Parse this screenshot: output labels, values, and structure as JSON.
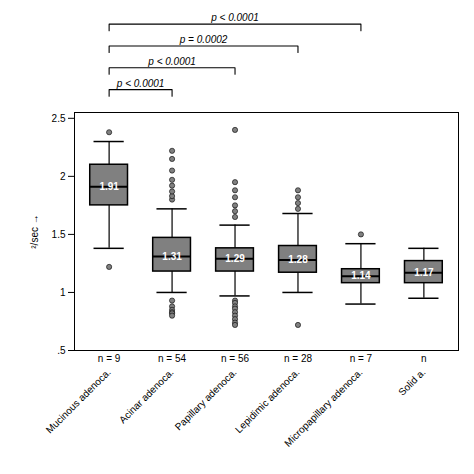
{
  "chart_data": {
    "type": "box",
    "categories": [
      "Mucinous adenoca.",
      "Acinar adenoca.",
      "Papillary adenoca.",
      "Lepidimic adenoca.",
      "Micropapillary adenoca.",
      "Solid a."
    ],
    "n_labels": [
      "n = 9",
      "n = 54",
      "n = 56",
      "n = 28",
      "n = 7",
      "n"
    ],
    "medians": [
      1.91,
      1.31,
      1.29,
      1.28,
      1.14,
      1.17
    ],
    "q1": [
      1.75,
      1.18,
      1.18,
      1.17,
      1.08,
      1.08
    ],
    "q3": [
      2.1,
      1.47,
      1.38,
      1.4,
      1.2,
      1.27
    ],
    "whisker_low": [
      1.38,
      1.0,
      0.97,
      1.0,
      0.9,
      0.95
    ],
    "whisker_high": [
      2.3,
      1.72,
      1.58,
      1.68,
      1.42,
      1.38
    ],
    "outliers_low": [
      [
        1.22
      ],
      [
        0.93,
        0.88,
        0.85,
        0.83,
        0.82,
        0.8
      ],
      [
        0.93,
        0.91,
        0.88,
        0.86,
        0.83,
        0.8,
        0.77,
        0.74,
        0.72
      ],
      [
        0.72
      ],
      [],
      []
    ],
    "outliers_high": [
      [
        2.38
      ],
      [
        1.8,
        1.83,
        1.87,
        1.92,
        1.97,
        2.05,
        2.15,
        2.22
      ],
      [
        1.65,
        1.7,
        1.75,
        1.82,
        1.88,
        1.95,
        2.4
      ],
      [
        1.72,
        1.77,
        1.82,
        1.88
      ],
      [
        1.5
      ],
      []
    ],
    "data_labels": true,
    "color": "#808080",
    "ylabel": "²/sec",
    "ylim": [
      0.5,
      2.55
    ],
    "yticks": [
      {
        "value": 0.5,
        "label": ".5"
      },
      1,
      1.5,
      2,
      2.5
    ],
    "brackets": [
      {
        "from": "Mucinous adenoca.",
        "to": "Acinar adenoca.",
        "label": "p < 0.0001"
      },
      {
        "from": "Mucinous adenoca.",
        "to": "Papillary adenoca.",
        "label": "p < 0.0001"
      },
      {
        "from": "Mucinous adenoca.",
        "to": "Lepidimic adenoca.",
        "label": "p = 0.0002"
      },
      {
        "from": "Mucinous adenoca.",
        "to": "Micropapillary adenoca.",
        "label": "p < 0.0001"
      }
    ]
  }
}
